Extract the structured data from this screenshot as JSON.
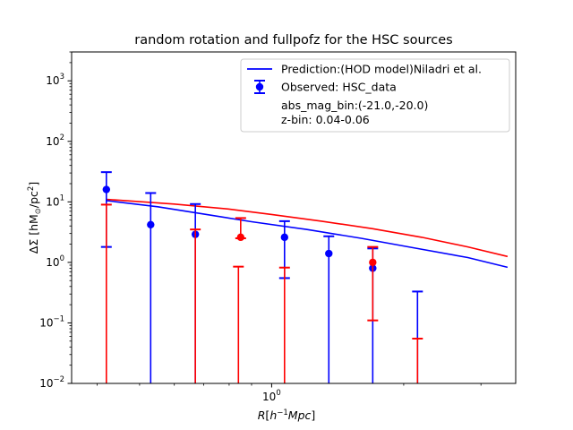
{
  "chart_data": {
    "type": "scatter",
    "title": "random rotation and fullpofz for the HSC sources",
    "xlabel": "R[h^{-1}Mpc]",
    "ylabel": "ΔΣ [hM_⊙/pc^2]",
    "xscale": "log",
    "yscale": "log",
    "xlim": [
      0.35,
      3.6
    ],
    "ylim": [
      0.01,
      3000
    ],
    "x_major_ticks": [
      {
        "value": 1,
        "label": "10^0"
      }
    ],
    "y_major_ticks": [
      {
        "value": 0.01,
        "label": "10^-2"
      },
      {
        "value": 0.1,
        "label": "10^-1"
      },
      {
        "value": 1,
        "label": "10^0"
      },
      {
        "value": 10,
        "label": "10^1"
      },
      {
        "value": 100,
        "label": "10^2"
      },
      {
        "value": 1000,
        "label": "10^3"
      }
    ],
    "grid": false,
    "legend_position": "top-right",
    "legend": {
      "entries": [
        {
          "label": "Prediction:(HOD model)Niladri et al.",
          "kind": "line",
          "color": "#0000ff"
        },
        {
          "label": "Observed: HSC_data",
          "kind": "errorbar",
          "color": "#0000ff"
        }
      ],
      "notes": [
        "abs_mag_bin:(-21.0,-20.0)",
        "z-bin: 0.04-0.06"
      ]
    },
    "series": [
      {
        "name": "Prediction:(HOD model)Niladri et al.",
        "kind": "line",
        "color": "#0000ff",
        "x": [
          0.42,
          0.55,
          0.7,
          0.9,
          1.2,
          1.6,
          2.1,
          2.8,
          3.45
        ],
        "y": [
          10.5,
          8.3,
          6.3,
          4.7,
          3.5,
          2.5,
          1.75,
          1.2,
          0.83
        ]
      },
      {
        "kind": "line",
        "color": "#ff0000",
        "x": [
          0.42,
          0.6,
          0.8,
          1.0,
          1.3,
          1.7,
          2.2,
          2.8,
          3.45
        ],
        "y": [
          11.0,
          9.2,
          7.6,
          6.2,
          4.8,
          3.6,
          2.6,
          1.8,
          1.25
        ]
      },
      {
        "name": "Observed: HSC_data",
        "kind": "errorbar",
        "color": "#0000ff",
        "points": [
          {
            "x": 0.42,
            "y": 16,
            "lo": 1.8,
            "hi": 31
          },
          {
            "x": 0.53,
            "y": 4.2,
            "lo": 0.01,
            "hi": 14
          },
          {
            "x": 0.67,
            "y": 2.9,
            "lo": 0.01,
            "hi": 9.2
          },
          {
            "x": 1.07,
            "y": 2.6,
            "lo": 0.55,
            "hi": 4.8
          },
          {
            "x": 1.35,
            "y": 1.4,
            "lo": 0.01,
            "hi": 2.7
          },
          {
            "x": 1.7,
            "y": 0.8,
            "lo": 0.01,
            "hi": 1.7
          },
          {
            "x": 2.15,
            "y": null,
            "lo": 0.01,
            "hi": 0.33
          }
        ]
      },
      {
        "kind": "errorbar",
        "color": "#ff0000",
        "points": [
          {
            "x": 0.42,
            "y": null,
            "lo": 0.01,
            "hi": 9
          },
          {
            "x": 0.67,
            "y": null,
            "lo": 0.01,
            "hi": 3.5
          },
          {
            "x": 0.84,
            "y": null,
            "lo": 0.01,
            "hi": 0.85
          },
          {
            "x": 0.85,
            "y": 2.6,
            "lo": 2.5,
            "hi": 5.4
          },
          {
            "x": 1.07,
            "y": null,
            "lo": 0.01,
            "hi": 0.82
          },
          {
            "x": 1.7,
            "y": 1.0,
            "lo": 0.11,
            "hi": 1.8
          },
          {
            "x": 2.15,
            "y": null,
            "lo": 0.01,
            "hi": 0.055
          }
        ]
      }
    ]
  }
}
